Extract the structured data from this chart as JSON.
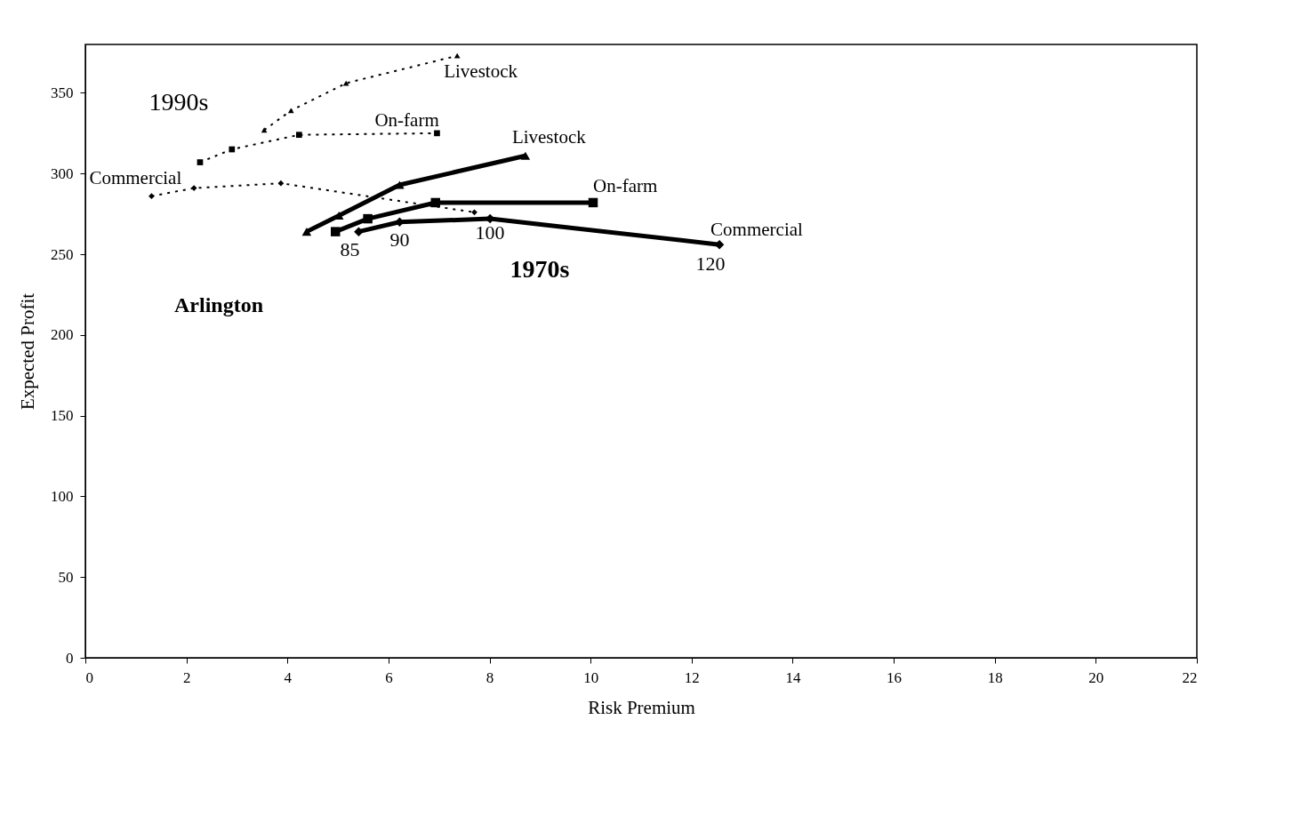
{
  "chart_data": {
    "type": "line",
    "xlabel": "Risk Premium",
    "ylabel": "Expected Profit",
    "xlim": [
      0,
      22
    ],
    "xticks": [
      0,
      2,
      4,
      6,
      8,
      10,
      12,
      14,
      16,
      18,
      20,
      22
    ],
    "ylim": [
      0,
      380
    ],
    "yticks": [
      0,
      50,
      100,
      150,
      200,
      250,
      300,
      350
    ],
    "grid": false,
    "series": [
      {
        "name": "Commercial",
        "color": "#000000",
        "marker": "diamond",
        "line_style": "dotted",
        "x": [
          1.31,
          2.15,
          3.87,
          7.7
        ],
        "values": [
          286,
          291,
          294,
          276
        ]
      },
      {
        "name": "On-farm",
        "color": "#000000",
        "marker": "square",
        "line_style": "dotted",
        "x": [
          2.27,
          2.9,
          4.23,
          6.96
        ],
        "values": [
          307,
          315,
          324,
          325
        ]
      },
      {
        "name": "Livestock",
        "color": "#000000",
        "marker": "triangle",
        "line_style": "dotted",
        "x": [
          3.54,
          4.07,
          5.16,
          7.36
        ],
        "values": [
          327,
          339,
          356,
          373
        ]
      },
      {
        "name": "Commercial",
        "color": "#000000",
        "marker": "diamond",
        "line_style": "solid",
        "x": [
          5.41,
          6.22,
          8.01,
          12.55
        ],
        "values": [
          264,
          270,
          272,
          256
        ]
      },
      {
        "name": "On-farm",
        "color": "#000000",
        "marker": "square",
        "line_style": "solid",
        "x": [
          4.95,
          5.59,
          6.93,
          10.05
        ],
        "values": [
          264,
          272,
          282,
          282
        ]
      },
      {
        "name": "Livestock",
        "color": "#000000",
        "marker": "triangle",
        "line_style": "solid",
        "x": [
          4.38,
          5.02,
          6.22,
          8.71
        ],
        "values": [
          264,
          274,
          293,
          311
        ]
      }
    ],
    "annotations": [
      {
        "text": "85",
        "x": 5.41,
        "y": 264
      },
      {
        "text": "90",
        "x": 6.22,
        "y": 270
      },
      {
        "text": "100",
        "x": 8.01,
        "y": 272
      },
      {
        "text": "120",
        "x": 12.55,
        "y": 256
      },
      "1990s",
      "1970s",
      "Arlington"
    ]
  }
}
